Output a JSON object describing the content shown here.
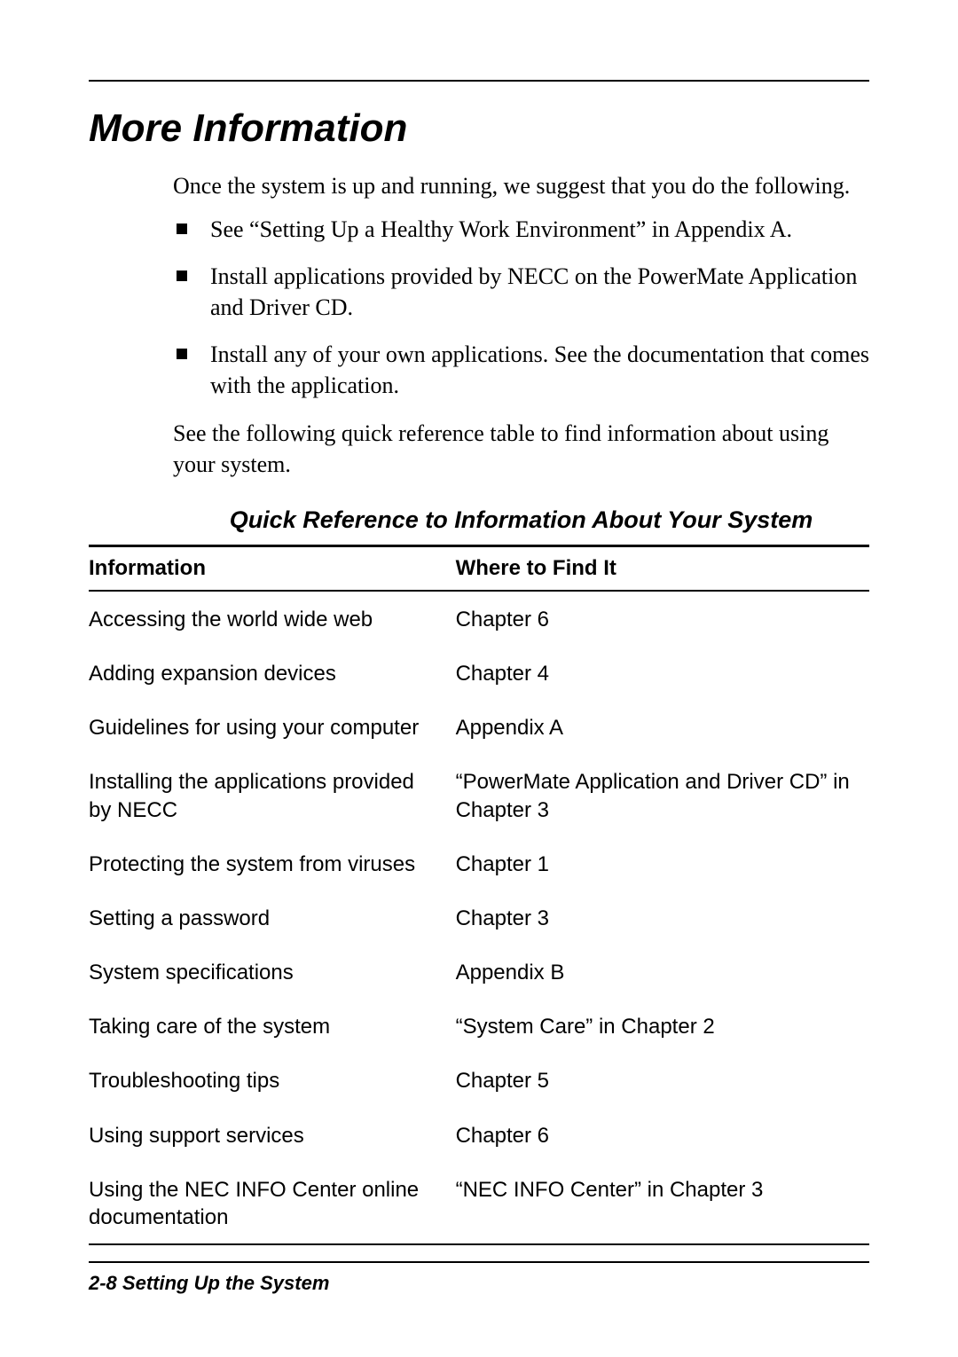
{
  "heading": "More Information",
  "intro": "Once the system is up and running, we suggest that you do the following.",
  "bullets": [
    "See “Setting Up a Healthy Work Environment” in Appendix A.",
    "Install applications provided by NECC on the PowerMate Application and Driver CD.",
    "Install any of your own applications. See the documentation that comes with the application."
  ],
  "after_list": "See the following quick reference table to find information about using your system.",
  "table": {
    "title": "Quick Reference to Information About Your System",
    "header": {
      "left": "Information",
      "right": "Where to Find It"
    },
    "rows": [
      {
        "left": "Accessing the world wide web",
        "right": "Chapter 6"
      },
      {
        "left": "Adding expansion devices",
        "right": "Chapter 4"
      },
      {
        "left": "Guidelines for using your computer",
        "right": "Appendix A"
      },
      {
        "left": "Installing the applications provided by NECC",
        "right": "“PowerMate Application and Driver CD” in Chapter 3"
      },
      {
        "left": "Protecting the system from viruses",
        "right": "Chapter 1"
      },
      {
        "left": "Setting a password",
        "right": "Chapter 3"
      },
      {
        "left": "System specifications",
        "right": "Appendix B"
      },
      {
        "left": "Taking care of the system",
        "right": "“System Care” in Chapter 2"
      },
      {
        "left": "Troubleshooting tips",
        "right": "Chapter 5"
      },
      {
        "left": "Using support services",
        "right": "Chapter 6"
      },
      {
        "left": "Using the NEC INFO Center online documentation",
        "right": "“NEC INFO Center” in Chapter 3"
      }
    ]
  },
  "footer": "2-8   Setting Up the System"
}
